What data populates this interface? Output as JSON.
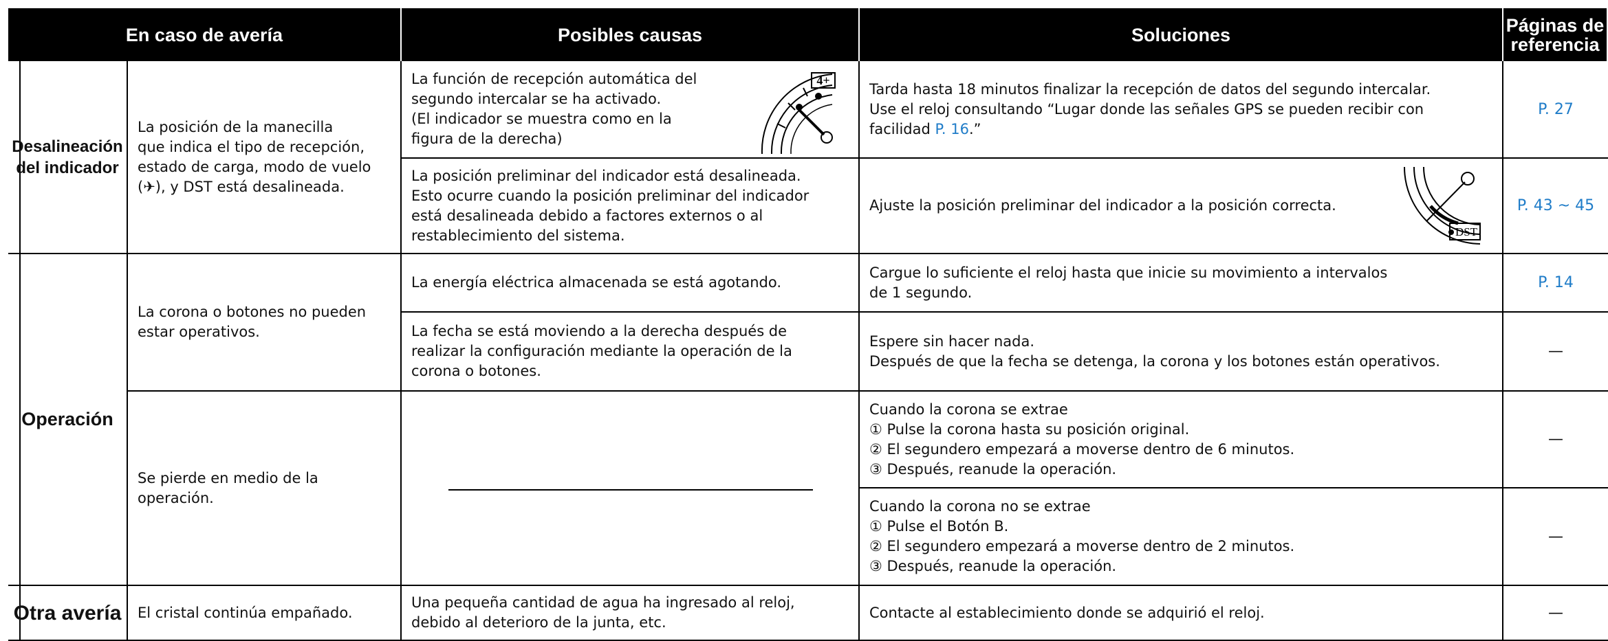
{
  "header": [
    "En caso de avería",
    "Posibles causas",
    "Soluciones",
    [
      "Páginas de",
      "referencia"
    ]
  ],
  "groups": [
    {
      "label": [
        "Desalineación",
        "del indicador"
      ]
    },
    {
      "label": [
        "Operación"
      ]
    },
    {
      "label": [
        "Otra avería"
      ]
    }
  ],
  "symptoms": [
    {
      "lines": [
        "La posición de la manecilla",
        "que indica el tipo de recepción,",
        "estado de carga, modo de vuelo",
        "(✈), y DST está desalineada."
      ]
    },
    {
      "lines": [
        "La corona o botones no pueden",
        "estar operativos."
      ]
    },
    {
      "lines": [
        "Se pierde en medio de la",
        "operación."
      ]
    },
    {
      "lines": [
        "El cristal continúa empañado."
      ]
    }
  ],
  "causes": [
    {
      "lines": [
        "La función de recepción automática del",
        "segundo intercalar se ha activado.",
        "(El indicador se muestra como en la",
        "figura de la derecha)"
      ]
    },
    {
      "lines": [
        "La posición preliminar del indicador está desalineada.",
        "Esto ocurre cuando la posición preliminar del indicador",
        "está desalineada debido a factores externos o al",
        "restablecimiento del sistema."
      ]
    },
    {
      "lines": [
        "La energía eléctrica almacenada se está agotando."
      ]
    },
    {
      "lines": [
        "La fecha se está moviendo a la derecha después de",
        "realizar la configuración mediante la operación de la",
        "corona o botones."
      ]
    },
    {
      "lines": [
        "Una pequeña cantidad de agua ha ingresado al reloj,",
        "debido al deterioro de la junta, etc."
      ]
    }
  ],
  "solutions": [
    {
      "lines": [
        "Tarda hasta 18 minutos finalizar la recepción de datos del segundo intercalar.",
        "Use el reloj consultando “Lugar donde las señales GPS se pueden recibir con"
      ],
      "last": {
        "text": "facilidad",
        "link": "P. 16",
        "after": ".”"
      }
    },
    {
      "lines": [
        "Ajuste la posición preliminar del indicador a la posición correcta."
      ]
    },
    {
      "lines": [
        "Cargue lo suficiente el reloj hasta que inicie su movimiento a intervalos",
        "de 1 segundo."
      ]
    },
    {
      "lines": [
        "Espere sin hacer nada.",
        "Después de que la fecha se detenga, la corona y los botones están operativos."
      ]
    },
    {
      "lines": [
        "Cuando la corona se extrae",
        "① Pulse la corona hasta su posición original.",
        "② El segundero empezará a moverse dentro de 6 minutos.",
        "③ Después, reanude la operación."
      ]
    },
    {
      "lines": [
        "Cuando la corona no se extrae",
        "① Pulse el Botón B.",
        "② El segundero empezará a moverse dentro de 2 minutos.",
        "③ Después, reanude la operación."
      ]
    },
    {
      "lines": [
        "Contacte al establecimiento donde se adquirió el reloj."
      ]
    }
  ],
  "references": [
    "P. 27",
    "P. 43 ~ 45",
    "P. 14",
    "—",
    "—",
    "—",
    "—"
  ],
  "figures": {
    "dial": "4+",
    "dst": "DST"
  }
}
